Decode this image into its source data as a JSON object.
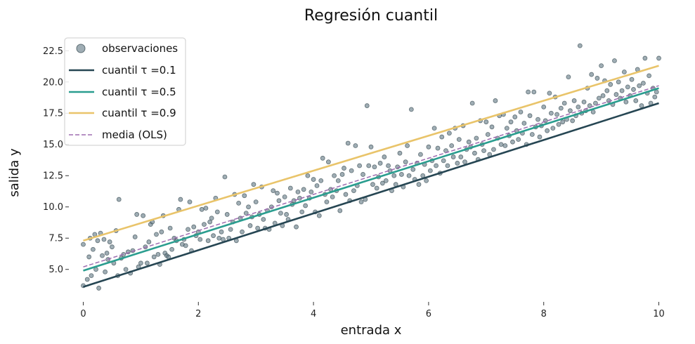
{
  "chart_data": {
    "type": "scatter",
    "title": "Regresión cuantil",
    "xlabel": "entrada x",
    "ylabel": "salida y",
    "xlim": [
      -0.25,
      10.25
    ],
    "ylim": [
      2.4,
      24.2
    ],
    "xticks": [
      0,
      2,
      4,
      6,
      8,
      10
    ],
    "xtick_labels": [
      "0",
      "2",
      "4",
      "6",
      "8",
      "10"
    ],
    "yticks": [
      5.0,
      7.5,
      10.0,
      12.5,
      15.0,
      17.5,
      20.0,
      22.5
    ],
    "ytick_labels": [
      "5.0",
      "7.5",
      "10.0",
      "12.5",
      "15.0",
      "17.5",
      "20.0",
      "22.5"
    ],
    "grid": false,
    "legend_position": "top-left",
    "colors": {
      "points": "#5f7782",
      "q01": "#264653",
      "q05": "#2a9d8f",
      "q09": "#e9c46a",
      "ols": "#9d6bb0"
    },
    "scatter": {
      "name": "observaciones",
      "points": [
        [
          0.0,
          3.7
        ],
        [
          0.0,
          7.0
        ],
        [
          0.07,
          4.2
        ],
        [
          0.1,
          6.0
        ],
        [
          0.12,
          7.5
        ],
        [
          0.14,
          4.5
        ],
        [
          0.17,
          6.6
        ],
        [
          0.2,
          7.8
        ],
        [
          0.22,
          5.0
        ],
        [
          0.25,
          7.3
        ],
        [
          0.27,
          3.5
        ],
        [
          0.3,
          7.9
        ],
        [
          0.33,
          6.1
        ],
        [
          0.36,
          7.4
        ],
        [
          0.38,
          4.8
        ],
        [
          0.41,
          6.3
        ],
        [
          0.43,
          5.8
        ],
        [
          0.46,
          7.2
        ],
        [
          0.5,
          6.8
        ],
        [
          0.53,
          5.5
        ],
        [
          0.57,
          8.1
        ],
        [
          0.6,
          4.5
        ],
        [
          0.62,
          10.6
        ],
        [
          0.66,
          5.9
        ],
        [
          0.7,
          6.2
        ],
        [
          0.74,
          5.0
        ],
        [
          0.78,
          6.4
        ],
        [
          0.82,
          4.7
        ],
        [
          0.86,
          6.5
        ],
        [
          0.9,
          7.6
        ],
        [
          0.93,
          9.4
        ],
        [
          0.96,
          5.2
        ],
        [
          1.0,
          5.5
        ],
        [
          1.04,
          9.3
        ],
        [
          1.08,
          6.8
        ],
        [
          1.11,
          5.5
        ],
        [
          1.14,
          7.2
        ],
        [
          1.17,
          8.6
        ],
        [
          1.2,
          8.8
        ],
        [
          1.23,
          6.0
        ],
        [
          1.27,
          7.8
        ],
        [
          1.3,
          6.2
        ],
        [
          1.33,
          5.4
        ],
        [
          1.36,
          8.0
        ],
        [
          1.39,
          9.3
        ],
        [
          1.42,
          6.3
        ],
        [
          1.45,
          6.1
        ],
        [
          1.48,
          6.0
        ],
        [
          1.51,
          8.3
        ],
        [
          1.54,
          6.6
        ],
        [
          1.58,
          7.5
        ],
        [
          1.62,
          7.3
        ],
        [
          1.66,
          9.8
        ],
        [
          1.69,
          10.6
        ],
        [
          1.72,
          7.0
        ],
        [
          1.75,
          7.4
        ],
        [
          1.78,
          6.9
        ],
        [
          1.82,
          8.2
        ],
        [
          1.85,
          10.4
        ],
        [
          1.88,
          6.5
        ],
        [
          1.92,
          8.4
        ],
        [
          1.96,
          7.7
        ],
        [
          2.0,
          8.0
        ],
        [
          2.03,
          7.4
        ],
        [
          2.06,
          9.8
        ],
        [
          2.1,
          8.6
        ],
        [
          2.13,
          9.9
        ],
        [
          2.17,
          7.3
        ],
        [
          2.2,
          8.8
        ],
        [
          2.23,
          9.1
        ],
        [
          2.26,
          7.7
        ],
        [
          2.3,
          10.7
        ],
        [
          2.33,
          9.6
        ],
        [
          2.36,
          7.5
        ],
        [
          2.4,
          8.0
        ],
        [
          2.43,
          7.4
        ],
        [
          2.46,
          12.4
        ],
        [
          2.5,
          9.4
        ],
        [
          2.53,
          7.5
        ],
        [
          2.56,
          8.2
        ],
        [
          2.6,
          8.8
        ],
        [
          2.63,
          11.0
        ],
        [
          2.66,
          7.3
        ],
        [
          2.7,
          10.3
        ],
        [
          2.73,
          9.1
        ],
        [
          2.76,
          8.0
        ],
        [
          2.8,
          10.9
        ],
        [
          2.83,
          9.5
        ],
        [
          2.87,
          10.0
        ],
        [
          2.9,
          8.5
        ],
        [
          2.93,
          9.2
        ],
        [
          2.96,
          11.8
        ],
        [
          3.0,
          10.4
        ],
        [
          3.03,
          8.3
        ],
        [
          3.06,
          9.4
        ],
        [
          3.1,
          11.6
        ],
        [
          3.13,
          9.0
        ],
        [
          3.16,
          8.3
        ],
        [
          3.2,
          9.7
        ],
        [
          3.23,
          8.2
        ],
        [
          3.27,
          10.0
        ],
        [
          3.3,
          11.3
        ],
        [
          3.33,
          8.7
        ],
        [
          3.37,
          11.1
        ],
        [
          3.4,
          10.5
        ],
        [
          3.43,
          9.5
        ],
        [
          3.46,
          8.5
        ],
        [
          3.5,
          10.8
        ],
        [
          3.53,
          9.4
        ],
        [
          3.56,
          9.0
        ],
        [
          3.6,
          11.5
        ],
        [
          3.63,
          10.2
        ],
        [
          3.66,
          10.5
        ],
        [
          3.7,
          8.4
        ],
        [
          3.73,
          11.2
        ],
        [
          3.76,
          10.7
        ],
        [
          3.8,
          9.6
        ],
        [
          3.83,
          11.4
        ],
        [
          3.86,
          10.1
        ],
        [
          3.9,
          12.5
        ],
        [
          3.93,
          10.7
        ],
        [
          3.96,
          11.2
        ],
        [
          4.0,
          12.2
        ],
        [
          4.03,
          9.6
        ],
        [
          4.06,
          11.7
        ],
        [
          4.1,
          9.3
        ],
        [
          4.13,
          12.1
        ],
        [
          4.16,
          13.9
        ],
        [
          4.2,
          11.0
        ],
        [
          4.23,
          10.4
        ],
        [
          4.26,
          13.6
        ],
        [
          4.3,
          11.4
        ],
        [
          4.33,
          10.8
        ],
        [
          4.36,
          12.5
        ],
        [
          4.4,
          11.3
        ],
        [
          4.43,
          12.1
        ],
        [
          4.46,
          9.7
        ],
        [
          4.5,
          12.6
        ],
        [
          4.53,
          13.1
        ],
        [
          4.56,
          11.0
        ],
        [
          4.6,
          15.1
        ],
        [
          4.63,
          10.5
        ],
        [
          4.66,
          12.9
        ],
        [
          4.7,
          11.3
        ],
        [
          4.73,
          14.9
        ],
        [
          4.76,
          11.7
        ],
        [
          4.8,
          13.3
        ],
        [
          4.83,
          10.4
        ],
        [
          4.86,
          12.6
        ],
        [
          4.9,
          10.6
        ],
        [
          4.93,
          18.1
        ],
        [
          4.96,
          13.3
        ],
        [
          5.0,
          14.8
        ],
        [
          5.03,
          11.8
        ],
        [
          5.06,
          13.2
        ],
        [
          5.1,
          11.5
        ],
        [
          5.13,
          12.4
        ],
        [
          5.16,
          13.5
        ],
        [
          5.2,
          11.9
        ],
        [
          5.23,
          14.0
        ],
        [
          5.26,
          12.1
        ],
        [
          5.3,
          13.3
        ],
        [
          5.33,
          12.9
        ],
        [
          5.36,
          11.3
        ],
        [
          5.4,
          12.5
        ],
        [
          5.43,
          11.8
        ],
        [
          5.46,
          13.2
        ],
        [
          5.5,
          14.3
        ],
        [
          5.53,
          12.6
        ],
        [
          5.56,
          11.6
        ],
        [
          5.6,
          13.6
        ],
        [
          5.63,
          14.9
        ],
        [
          5.66,
          12.5
        ],
        [
          5.7,
          17.8
        ],
        [
          5.73,
          13.0
        ],
        [
          5.76,
          12.2
        ],
        [
          5.8,
          13.5
        ],
        [
          5.83,
          11.8
        ],
        [
          5.86,
          14.2
        ],
        [
          5.9,
          12.5
        ],
        [
          5.93,
          13.4
        ],
        [
          5.96,
          12.1
        ],
        [
          6.0,
          14.8
        ],
        [
          6.03,
          12.9
        ],
        [
          6.06,
          13.7
        ],
        [
          6.1,
          16.3
        ],
        [
          6.13,
          13.3
        ],
        [
          6.16,
          14.7
        ],
        [
          6.2,
          12.7
        ],
        [
          6.23,
          15.6
        ],
        [
          6.26,
          13.7
        ],
        [
          6.3,
          14.5
        ],
        [
          6.33,
          13.3
        ],
        [
          6.36,
          15.9
        ],
        [
          6.4,
          14.9
        ],
        [
          6.43,
          14.0
        ],
        [
          6.46,
          16.3
        ],
        [
          6.5,
          13.5
        ],
        [
          6.53,
          15.4
        ],
        [
          6.56,
          14.0
        ],
        [
          6.6,
          16.5
        ],
        [
          6.63,
          13.6
        ],
        [
          6.66,
          14.6
        ],
        [
          6.7,
          15.2
        ],
        [
          6.73,
          14.8
        ],
        [
          6.76,
          18.3
        ],
        [
          6.8,
          14.3
        ],
        [
          6.83,
          15.5
        ],
        [
          6.86,
          13.8
        ],
        [
          6.9,
          16.9
        ],
        [
          6.93,
          15.0
        ],
        [
          6.96,
          14.5
        ],
        [
          7.0,
          16.8
        ],
        [
          7.03,
          15.8
        ],
        [
          7.06,
          14.2
        ],
        [
          7.1,
          16.4
        ],
        [
          7.13,
          14.6
        ],
        [
          7.16,
          18.5
        ],
        [
          7.2,
          15.5
        ],
        [
          7.23,
          17.3
        ],
        [
          7.26,
          15.0
        ],
        [
          7.3,
          17.4
        ],
        [
          7.33,
          14.9
        ],
        [
          7.36,
          16.3
        ],
        [
          7.4,
          15.7
        ],
        [
          7.43,
          16.8
        ],
        [
          7.46,
          15.2
        ],
        [
          7.5,
          17.2
        ],
        [
          7.53,
          16.1
        ],
        [
          7.56,
          15.4
        ],
        [
          7.6,
          17.6
        ],
        [
          7.63,
          15.9
        ],
        [
          7.66,
          16.7
        ],
        [
          7.7,
          15.0
        ],
        [
          7.73,
          19.2
        ],
        [
          7.76,
          17.3
        ],
        [
          7.8,
          15.8
        ],
        [
          7.83,
          19.2
        ],
        [
          7.86,
          16.4
        ],
        [
          7.9,
          17.0
        ],
        [
          7.93,
          15.6
        ],
        [
          7.96,
          16.5
        ],
        [
          8.0,
          18.0
        ],
        [
          8.03,
          16.9
        ],
        [
          8.06,
          16.1
        ],
        [
          8.1,
          19.1
        ],
        [
          8.13,
          17.5
        ],
        [
          8.16,
          16.3
        ],
        [
          8.2,
          18.8
        ],
        [
          8.23,
          17.4
        ],
        [
          8.26,
          16.6
        ],
        [
          8.3,
          17.9
        ],
        [
          8.33,
          16.8
        ],
        [
          8.36,
          18.3
        ],
        [
          8.4,
          17.0
        ],
        [
          8.43,
          20.4
        ],
        [
          8.46,
          17.7
        ],
        [
          8.5,
          16.9
        ],
        [
          8.53,
          18.5
        ],
        [
          8.56,
          17.3
        ],
        [
          8.6,
          18.0
        ],
        [
          8.63,
          22.9
        ],
        [
          8.66,
          17.5
        ],
        [
          8.7,
          18.4
        ],
        [
          8.73,
          17.7
        ],
        [
          8.76,
          19.5
        ],
        [
          8.8,
          18.1
        ],
        [
          8.83,
          20.6
        ],
        [
          8.86,
          17.6
        ],
        [
          8.9,
          18.3
        ],
        [
          8.93,
          20.3
        ],
        [
          8.96,
          18.7
        ],
        [
          9.0,
          21.3
        ],
        [
          9.03,
          18.9
        ],
        [
          9.06,
          20.1
        ],
        [
          9.1,
          19.3
        ],
        [
          9.13,
          18.5
        ],
        [
          9.16,
          19.8
        ],
        [
          9.2,
          18.2
        ],
        [
          9.23,
          21.7
        ],
        [
          9.26,
          19.0
        ],
        [
          9.3,
          20.0
        ],
        [
          9.33,
          18.7
        ],
        [
          9.36,
          19.3
        ],
        [
          9.4,
          20.8
        ],
        [
          9.43,
          18.4
        ],
        [
          9.46,
          19.6
        ],
        [
          9.5,
          18.9
        ],
        [
          9.53,
          20.2
        ],
        [
          9.56,
          19.4
        ],
        [
          9.6,
          18.5
        ],
        [
          9.63,
          21.0
        ],
        [
          9.66,
          19.7
        ],
        [
          9.7,
          18.1
        ],
        [
          9.73,
          19.9
        ],
        [
          9.76,
          21.9
        ],
        [
          9.8,
          19.1
        ],
        [
          9.83,
          20.5
        ],
        [
          9.86,
          18.3
        ],
        [
          9.9,
          19.5
        ],
        [
          9.93,
          18.8
        ],
        [
          9.96,
          19.2
        ],
        [
          10.0,
          21.9
        ]
      ]
    },
    "series": [
      {
        "name": "cuantil  τ =0.1",
        "color_key": "q01",
        "style": "solid",
        "x": [
          0,
          10
        ],
        "y": [
          3.6,
          18.3
        ]
      },
      {
        "name": "cuantil  τ =0.5",
        "color_key": "q05",
        "style": "solid",
        "x": [
          0,
          10
        ],
        "y": [
          4.9,
          19.5
        ]
      },
      {
        "name": "cuantil  τ =0.9",
        "color_key": "q09",
        "style": "solid",
        "x": [
          0,
          10
        ],
        "y": [
          7.3,
          21.3
        ]
      },
      {
        "name": "media (OLS)",
        "color_key": "ols",
        "style": "dashed",
        "x": [
          0,
          10
        ],
        "y": [
          5.2,
          19.7
        ]
      }
    ]
  }
}
